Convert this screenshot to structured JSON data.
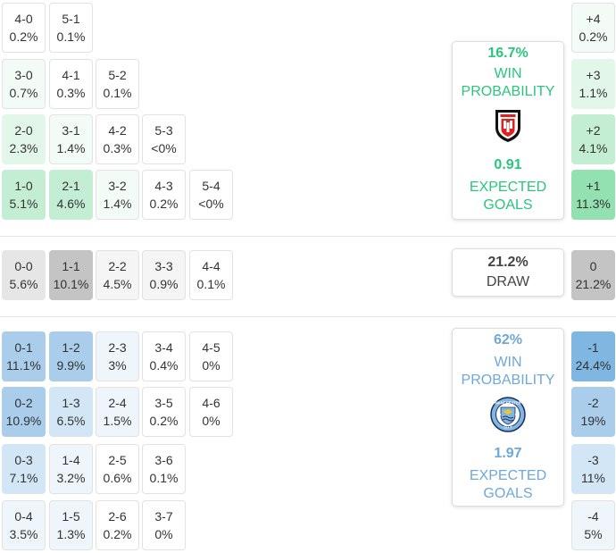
{
  "colors": {
    "home": "#2ac57d",
    "away": "#6fa8d6",
    "home_tints": [
      "#ffffff",
      "#f3fbf6",
      "#e2f7ea",
      "#c3eed3"
    ],
    "away_tints": [
      "#ffffff",
      "#eef5fb",
      "#d2e6f6",
      "#a9cdea"
    ],
    "draw_tints": [
      "#ffffff",
      "#f5f5f5",
      "#e6e6e6",
      "#c4c4c4"
    ],
    "margin_home": [
      "#f3fbf6",
      "#e2f7ea",
      "#c3eed3",
      "#93e0b0"
    ],
    "margin_away": [
      "#eef5fb",
      "#d2e6f6",
      "#a9cdea",
      "#7fb6e2"
    ],
    "margin_draw": "#c4c4c4"
  },
  "home_grid": [
    [
      {
        "s": "4-0",
        "p": "0.2%",
        "t": 0
      },
      {
        "s": "5-1",
        "p": "0.1%",
        "t": 0
      }
    ],
    [
      {
        "s": "3-0",
        "p": "0.7%",
        "t": 1
      },
      {
        "s": "4-1",
        "p": "0.3%",
        "t": 0
      },
      {
        "s": "5-2",
        "p": "0.1%",
        "t": 0
      }
    ],
    [
      {
        "s": "2-0",
        "p": "2.3%",
        "t": 2
      },
      {
        "s": "3-1",
        "p": "1.4%",
        "t": 1
      },
      {
        "s": "4-2",
        "p": "0.3%",
        "t": 0
      },
      {
        "s": "5-3",
        "p": "<0%",
        "t": 0
      }
    ],
    [
      {
        "s": "1-0",
        "p": "5.1%",
        "t": 3
      },
      {
        "s": "2-1",
        "p": "4.6%",
        "t": 3
      },
      {
        "s": "3-2",
        "p": "1.4%",
        "t": 1
      },
      {
        "s": "4-3",
        "p": "0.2%",
        "t": 0
      },
      {
        "s": "5-4",
        "p": "<0%",
        "t": 0
      }
    ]
  ],
  "draw_row": [
    {
      "s": "0-0",
      "p": "5.6%",
      "t": 2
    },
    {
      "s": "1-1",
      "p": "10.1%",
      "t": 3
    },
    {
      "s": "2-2",
      "p": "4.5%",
      "t": 1
    },
    {
      "s": "3-3",
      "p": "0.9%",
      "t": 1
    },
    {
      "s": "4-4",
      "p": "0.1%",
      "t": 0
    }
  ],
  "away_grid": [
    [
      {
        "s": "0-1",
        "p": "11.1%",
        "t": 3
      },
      {
        "s": "1-2",
        "p": "9.9%",
        "t": 3
      },
      {
        "s": "2-3",
        "p": "3%",
        "t": 1
      },
      {
        "s": "3-4",
        "p": "0.4%",
        "t": 0
      },
      {
        "s": "4-5",
        "p": "0%",
        "t": 0
      }
    ],
    [
      {
        "s": "0-2",
        "p": "10.9%",
        "t": 3
      },
      {
        "s": "1-3",
        "p": "6.5%",
        "t": 2
      },
      {
        "s": "2-4",
        "p": "1.5%",
        "t": 1
      },
      {
        "s": "3-5",
        "p": "0.2%",
        "t": 0
      },
      {
        "s": "4-6",
        "p": "0%",
        "t": 0
      }
    ],
    [
      {
        "s": "0-3",
        "p": "7.1%",
        "t": 2
      },
      {
        "s": "1-4",
        "p": "3.2%",
        "t": 1
      },
      {
        "s": "2-5",
        "p": "0.6%",
        "t": 0
      },
      {
        "s": "3-6",
        "p": "0.1%",
        "t": 0
      }
    ],
    [
      {
        "s": "0-4",
        "p": "3.5%",
        "t": 1
      },
      {
        "s": "1-5",
        "p": "1.3%",
        "t": 1
      },
      {
        "s": "2-6",
        "p": "0.2%",
        "t": 0
      },
      {
        "s": "3-7",
        "p": "0%",
        "t": 0
      }
    ]
  ],
  "margins": {
    "home": [
      {
        "s": "+4",
        "p": "0.2%",
        "t": 0
      },
      {
        "s": "+3",
        "p": "1.1%",
        "t": 1
      },
      {
        "s": "+2",
        "p": "4.1%",
        "t": 2
      },
      {
        "s": "+1",
        "p": "11.3%",
        "t": 3
      }
    ],
    "draw": {
      "s": "0",
      "p": "21.2%"
    },
    "away": [
      {
        "s": "-1",
        "p": "24.4%",
        "t": 3
      },
      {
        "s": "-2",
        "p": "19%",
        "t": 2
      },
      {
        "s": "-3",
        "p": "11%",
        "t": 1
      },
      {
        "s": "-4",
        "p": "5%",
        "t": 0
      }
    ]
  },
  "home_panel": {
    "win_pct": "16.7%",
    "win_label_1": "WIN",
    "win_label_2": "PROBABILITY",
    "xg": "0.91",
    "xg_label_1": "EXPECTED",
    "xg_label_2": "GOALS",
    "badge_icon": "fulham-crest-icon"
  },
  "draw_panel": {
    "pct": "21.2%",
    "label": "DRAW"
  },
  "away_panel": {
    "win_pct": "62%",
    "win_label_1": "WIN",
    "win_label_2": "PROBABILITY",
    "xg": "1.97",
    "xg_label_1": "EXPECTED",
    "xg_label_2": "GOALS",
    "badge_icon": "manchester-city-crest-icon",
    "badge_text_top": "MANCHESTER",
    "badge_text_bottom": "CITY"
  }
}
